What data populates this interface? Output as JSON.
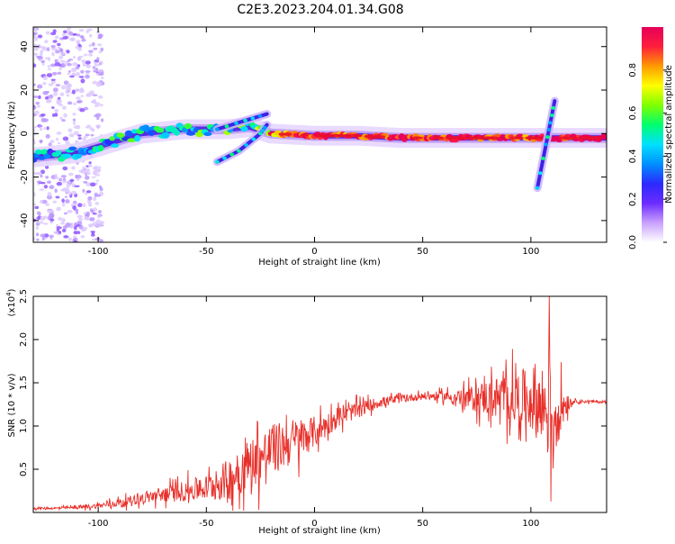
{
  "page_title": "C2E3.2023.204.01.34.G08",
  "colors": {
    "snr_line": "#e8302a",
    "ridge_core": "#e8112d",
    "scatter": "#b07cf0",
    "axis": "#000000"
  },
  "colorbar": {
    "label": "Normalized spectral amplitude",
    "ticks": [
      "0.0",
      "0.2",
      "0.4",
      "0.6",
      "0.8"
    ],
    "tick_values": [
      0.0,
      0.2,
      0.4,
      0.6,
      0.8
    ],
    "range": [
      0,
      1
    ],
    "stops": [
      "#ffffff",
      "#c9a0ff",
      "#6b2bff",
      "#2a2aff",
      "#0090ff",
      "#00e0ff",
      "#00ff70",
      "#7dff00",
      "#ffff00",
      "#ff9a00",
      "#ff1e3c",
      "#e6005a"
    ]
  },
  "chart_data": [
    {
      "type": "heatmap",
      "xlabel": "Height of straight line (km)",
      "ylabel": "Frequency (Hz)",
      "xlim": [
        -130,
        135
      ],
      "ylim": [
        -50,
        49
      ],
      "xticks": [
        -100,
        -50,
        0,
        50,
        100
      ],
      "xtick_labels": [
        "-100",
        "-50",
        "0",
        "50",
        "100"
      ],
      "yticks": [
        -40,
        -20,
        0,
        20,
        40
      ],
      "ytick_labels": [
        "-40",
        "-20",
        "0",
        "20",
        "40"
      ],
      "ridge": [
        {
          "x": -130,
          "y": -11,
          "amp": 0.35
        },
        {
          "x": -120,
          "y": -10,
          "amp": 0.38
        },
        {
          "x": -110,
          "y": -9,
          "amp": 0.4
        },
        {
          "x": -100,
          "y": -6,
          "amp": 0.42
        },
        {
          "x": -90,
          "y": -3,
          "amp": 0.45
        },
        {
          "x": -80,
          "y": 0,
          "amp": 0.45
        },
        {
          "x": -70,
          "y": 1,
          "amp": 0.45
        },
        {
          "x": -60,
          "y": 2,
          "amp": 0.48
        },
        {
          "x": -50,
          "y": 2,
          "amp": 0.5
        },
        {
          "x": -40,
          "y": 2,
          "amp": 0.5
        },
        {
          "x": -30,
          "y": 3,
          "amp": 0.5
        },
        {
          "x": -20,
          "y": 0,
          "amp": 0.8
        },
        {
          "x": 0,
          "y": -1,
          "amp": 0.9
        },
        {
          "x": 20,
          "y": -1,
          "amp": 0.95
        },
        {
          "x": 40,
          "y": -2,
          "amp": 0.95
        },
        {
          "x": 60,
          "y": -2,
          "amp": 0.97
        },
        {
          "x": 80,
          "y": -2,
          "amp": 0.95
        },
        {
          "x": 100,
          "y": -2,
          "amp": 0.95
        },
        {
          "x": 120,
          "y": -2,
          "amp": 1.0
        },
        {
          "x": 135,
          "y": -2,
          "amp": 1.0
        }
      ],
      "branches": [
        {
          "points": [
            {
              "x": -45,
              "y": -13
            },
            {
              "x": -35,
              "y": -8
            },
            {
              "x": -25,
              "y": 0
            },
            {
              "x": -22,
              "y": 4
            }
          ]
        },
        {
          "points": [
            {
              "x": -45,
              "y": 2
            },
            {
              "x": -32,
              "y": 6
            },
            {
              "x": -22,
              "y": 9
            }
          ]
        },
        {
          "points": [
            {
              "x": 103,
              "y": -25
            },
            {
              "x": 107,
              "y": -5
            },
            {
              "x": 109,
              "y": 5
            },
            {
              "x": 111,
              "y": 15
            }
          ]
        }
      ],
      "scatter_region": {
        "x": [
          -130,
          -98
        ],
        "y": [
          -50,
          49
        ],
        "amp": 0.2
      }
    },
    {
      "type": "line",
      "xlabel": "Height of straight line (km)",
      "ylabel": "SNR (10 * v/v)",
      "yscale_label": "(x10",
      "yscale_exp": "4",
      "yscale_close": ")",
      "xlim": [
        -130,
        135
      ],
      "ylim": [
        0,
        2.5
      ],
      "xticks": [
        -100,
        -50,
        0,
        50,
        100
      ],
      "xtick_labels": [
        "-100",
        "-50",
        "0",
        "50",
        "100"
      ],
      "yticks": [
        0.5,
        1.0,
        1.5,
        2.0,
        2.5
      ],
      "ytick_labels": [
        "0.5",
        "1.0",
        "1.5",
        "2.0",
        "2.5"
      ],
      "series": [
        {
          "x": [
            -130,
            -120,
            -110,
            -100,
            -90,
            -80,
            -70,
            -60,
            -50,
            -40,
            -30,
            -20,
            -10,
            0,
            10,
            20,
            30,
            40,
            50,
            60,
            70,
            80,
            90,
            100,
            105,
            110,
            115,
            120,
            135
          ],
          "y": [
            0.05,
            0.05,
            0.06,
            0.08,
            0.12,
            0.17,
            0.22,
            0.26,
            0.3,
            0.4,
            0.6,
            0.75,
            0.85,
            0.95,
            1.1,
            1.2,
            1.28,
            1.32,
            1.35,
            1.35,
            1.33,
            1.35,
            1.35,
            1.35,
            1.3,
            1.2,
            1.28,
            1.29,
            1.28
          ],
          "noise": [
            0.02,
            0.02,
            0.03,
            0.05,
            0.08,
            0.1,
            0.15,
            0.2,
            0.25,
            0.4,
            0.5,
            0.5,
            0.45,
            0.3,
            0.2,
            0.15,
            0.1,
            0.08,
            0.07,
            0.1,
            0.2,
            0.35,
            0.5,
            0.6,
            0.8,
            1.1,
            0.3,
            0.03,
            0.03
          ]
        }
      ]
    }
  ]
}
